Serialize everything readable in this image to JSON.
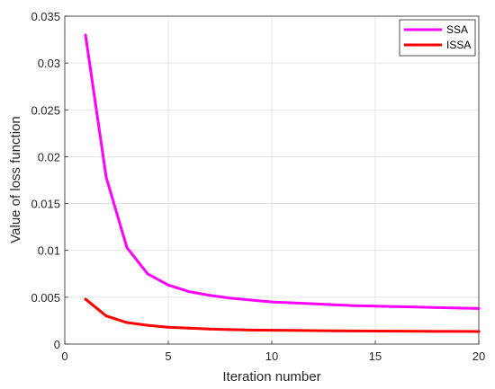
{
  "chart_data": {
    "type": "line",
    "title": "",
    "xlabel": "Iteration number",
    "ylabel": "Value of loss function",
    "xlim": [
      0,
      20
    ],
    "ylim": [
      0,
      0.035
    ],
    "xticks": [
      0,
      5,
      10,
      15,
      20
    ],
    "xtick_labels": [
      "0",
      "5",
      "10",
      "15",
      "20"
    ],
    "yticks": [
      0,
      0.005,
      0.01,
      0.015,
      0.02,
      0.025,
      0.03,
      0.035
    ],
    "ytick_labels": [
      "0",
      "0.005",
      "0.01",
      "0.015",
      "0.02",
      "0.025",
      "0.03",
      "0.035"
    ],
    "grid": true,
    "legend_position": "top-right",
    "x": [
      1,
      2,
      3,
      4,
      5,
      6,
      7,
      8,
      9,
      10,
      11,
      12,
      13,
      14,
      15,
      16,
      17,
      18,
      19,
      20
    ],
    "series": [
      {
        "name": "SSA",
        "color": "#ff00ff",
        "values": [
          0.033,
          0.0178,
          0.0103,
          0.0075,
          0.0063,
          0.0056,
          0.0052,
          0.0049,
          0.0047,
          0.0045,
          0.0044,
          0.0043,
          0.0042,
          0.0041,
          0.00405,
          0.004,
          0.00395,
          0.0039,
          0.00385,
          0.0038
        ]
      },
      {
        "name": "ISSA",
        "color": "#ff0000",
        "values": [
          0.0048,
          0.003,
          0.0023,
          0.002,
          0.0018,
          0.0017,
          0.0016,
          0.00155,
          0.0015,
          0.00148,
          0.00146,
          0.00144,
          0.00142,
          0.0014,
          0.00139,
          0.00138,
          0.00137,
          0.00136,
          0.00135,
          0.00134
        ]
      }
    ]
  }
}
